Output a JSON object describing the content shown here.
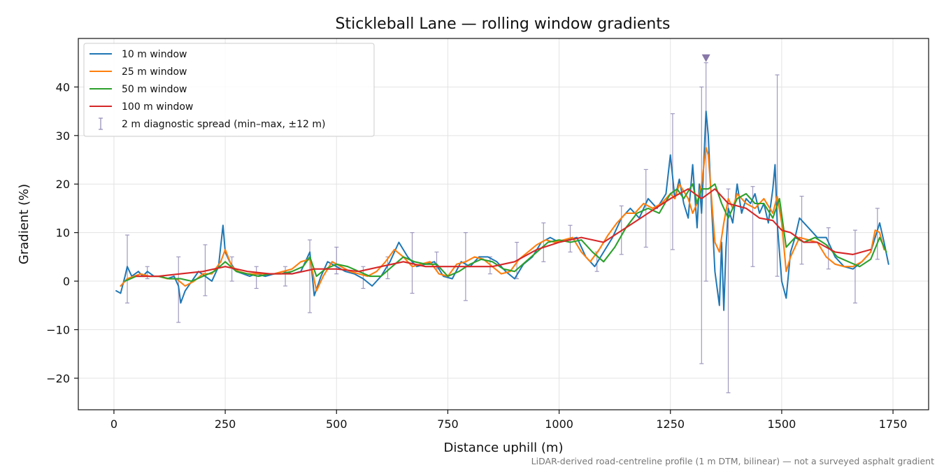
{
  "chart_data": {
    "type": "line",
    "title": "Stickleball Lane — rolling window gradients",
    "xlabel": "Distance uphill (m)",
    "ylabel": "Gradient (%)",
    "footnote": "LiDAR-derived road-centreline profile (1 m DTM, bilinear) — not a surveyed asphalt gradient",
    "xlim": [
      -80,
      1830
    ],
    "ylim": [
      -26.5,
      50
    ],
    "xticks": [
      0,
      250,
      500,
      750,
      1000,
      1250,
      1500,
      1750
    ],
    "xtick_labels": [
      "0",
      "250",
      "500",
      "750",
      "1000",
      "1250",
      "1500",
      "1750"
    ],
    "yticks": [
      -20,
      -10,
      0,
      10,
      20,
      30,
      40
    ],
    "ytick_labels": [
      "−20",
      "−10",
      "0",
      "10",
      "20",
      "30",
      "40"
    ],
    "grid": true,
    "legend_position": "upper left",
    "series": [
      {
        "name": "10 m window",
        "color": "#1f77b4",
        "x": [
          5,
          15,
          25,
          30,
          40,
          55,
          65,
          75,
          90,
          105,
          120,
          135,
          145,
          150,
          160,
          175,
          190,
          205,
          220,
          235,
          245,
          250,
          260,
          275,
          290,
          305,
          320,
          340,
          360,
          380,
          400,
          420,
          440,
          450,
          465,
          480,
          500,
          520,
          540,
          560,
          580,
          600,
          620,
          640,
          660,
          680,
          700,
          720,
          740,
          760,
          780,
          800,
          820,
          840,
          860,
          880,
          900,
          920,
          940,
          960,
          980,
          1000,
          1020,
          1040,
          1060,
          1080,
          1100,
          1120,
          1140,
          1160,
          1180,
          1200,
          1220,
          1240,
          1250,
          1260,
          1270,
          1280,
          1290,
          1300,
          1310,
          1315,
          1320,
          1330,
          1335,
          1340,
          1350,
          1360,
          1365,
          1370,
          1375,
          1380,
          1390,
          1400,
          1410,
          1420,
          1430,
          1440,
          1450,
          1460,
          1470,
          1480,
          1485,
          1490,
          1500,
          1510,
          1520,
          1530,
          1540,
          1560,
          1580,
          1600,
          1620,
          1640,
          1660,
          1680,
          1700,
          1710,
          1720,
          1730,
          1740
        ],
        "y": [
          -2,
          -2.5,
          1,
          3,
          1,
          2,
          1,
          2,
          1,
          1,
          0.5,
          1,
          -1,
          -4.5,
          -2,
          0,
          2,
          1,
          0,
          3,
          11.5,
          6,
          4,
          2,
          1.5,
          1,
          1.5,
          1,
          1.5,
          2,
          1.5,
          2,
          6,
          -3,
          1,
          4,
          3,
          2,
          1.5,
          0.5,
          -1,
          1,
          4,
          8,
          5,
          3,
          3.5,
          4,
          1,
          0.5,
          4,
          3,
          5,
          5,
          4,
          2,
          0.5,
          3.5,
          5,
          8,
          9,
          8,
          8.5,
          9,
          5,
          3,
          6,
          9,
          13,
          15,
          13,
          17,
          15,
          18,
          26,
          17,
          21,
          16,
          13,
          24,
          11,
          20,
          14,
          35,
          30,
          20,
          2,
          -5,
          8,
          -6,
          7,
          15,
          12,
          20,
          14,
          17,
          16,
          18,
          14,
          16,
          12,
          19,
          24,
          12,
          0,
          -3.5,
          6,
          9,
          13,
          11,
          9,
          9,
          5,
          3,
          2.5,
          4,
          6,
          9,
          12,
          8,
          3.5
        ]
      },
      {
        "name": "25 m window",
        "color": "#ff7f0e",
        "x": [
          15,
          30,
          45,
          60,
          80,
          100,
          120,
          140,
          160,
          180,
          200,
          220,
          240,
          250,
          265,
          280,
          300,
          320,
          340,
          360,
          380,
          400,
          420,
          440,
          455,
          470,
          490,
          510,
          530,
          550,
          570,
          590,
          610,
          630,
          650,
          670,
          690,
          710,
          730,
          750,
          770,
          790,
          810,
          830,
          850,
          870,
          890,
          910,
          930,
          950,
          970,
          990,
          1010,
          1030,
          1050,
          1070,
          1090,
          1110,
          1130,
          1150,
          1170,
          1190,
          1210,
          1230,
          1250,
          1260,
          1270,
          1290,
          1300,
          1310,
          1320,
          1330,
          1335,
          1340,
          1350,
          1360,
          1370,
          1380,
          1390,
          1400,
          1420,
          1440,
          1460,
          1480,
          1490,
          1500,
          1510,
          1520,
          1540,
          1560,
          1580,
          1600,
          1620,
          1640,
          1660,
          1680,
          1700,
          1710,
          1720,
          1730
        ],
        "y": [
          -1,
          0.5,
          1,
          1.5,
          1,
          1,
          0.5,
          0.5,
          -1,
          0,
          1.5,
          1.5,
          4,
          6.5,
          3,
          2,
          1.5,
          1.5,
          1.5,
          1.5,
          2,
          2.5,
          4,
          4.5,
          -2,
          1,
          4,
          3,
          2,
          1.5,
          1,
          2,
          4,
          6.5,
          5,
          3,
          3.5,
          4,
          1.5,
          1,
          3.5,
          4,
          5,
          4.5,
          3,
          1.5,
          2,
          4.5,
          6,
          7.5,
          8.5,
          8,
          8.5,
          9,
          6,
          4,
          6.5,
          9.5,
          12,
          14,
          14,
          16,
          15,
          16,
          18,
          17,
          20,
          17,
          14,
          16,
          20,
          27.5,
          26,
          20,
          8,
          6,
          12,
          17,
          15,
          18,
          16,
          15,
          17,
          14,
          17.5,
          12,
          2,
          5,
          9,
          8.5,
          8,
          5,
          3.5,
          3,
          3,
          4,
          6,
          10.5,
          10,
          6.5
        ]
      },
      {
        "name": "50 m window",
        "color": "#2ca02c",
        "x": [
          25,
          50,
          75,
          100,
          125,
          150,
          175,
          200,
          225,
          250,
          275,
          300,
          325,
          350,
          375,
          400,
          425,
          440,
          455,
          475,
          500,
          525,
          550,
          575,
          600,
          625,
          650,
          675,
          700,
          725,
          750,
          775,
          800,
          825,
          850,
          875,
          900,
          925,
          950,
          975,
          1000,
          1025,
          1050,
          1075,
          1100,
          1125,
          1150,
          1175,
          1200,
          1225,
          1250,
          1265,
          1280,
          1300,
          1310,
          1320,
          1335,
          1350,
          1365,
          1380,
          1400,
          1420,
          1440,
          1460,
          1480,
          1495,
          1510,
          1530,
          1550,
          1575,
          1600,
          1625,
          1650,
          1675,
          1700,
          1720,
          1735
        ],
        "y": [
          0,
          1,
          1,
          1,
          0.5,
          0.5,
          0,
          1,
          2,
          4,
          2,
          1.5,
          1,
          1.5,
          1.5,
          2,
          3,
          5,
          1,
          2.5,
          3.5,
          3,
          2,
          1,
          1,
          3,
          5,
          4,
          3.5,
          3.5,
          1,
          2,
          3.5,
          4.5,
          4,
          2.5,
          2,
          4,
          6,
          8,
          8.5,
          8,
          8.5,
          6,
          4,
          7,
          11,
          14,
          15,
          14,
          18,
          19,
          17,
          20,
          16,
          19,
          19,
          20,
          16,
          13,
          17,
          18,
          16,
          16,
          13,
          17,
          7,
          9,
          8,
          9,
          7.5,
          5,
          4,
          3,
          4.5,
          9,
          6
        ]
      },
      {
        "name": "100 m window",
        "color": "#d62728",
        "x": [
          50,
          100,
          150,
          200,
          250,
          300,
          350,
          400,
          450,
          500,
          550,
          600,
          650,
          700,
          750,
          800,
          850,
          900,
          950,
          1000,
          1050,
          1100,
          1150,
          1200,
          1250,
          1290,
          1320,
          1350,
          1380,
          1420,
          1450,
          1480,
          1500,
          1520,
          1550,
          1580,
          1620,
          1660,
          1700
        ],
        "y": [
          1,
          1,
          1.5,
          2,
          3,
          2,
          1.5,
          1.5,
          2.5,
          2.5,
          2,
          3,
          4,
          3,
          3,
          3,
          3,
          4,
          6.5,
          8,
          9,
          8,
          11,
          14,
          17,
          19,
          17,
          19,
          16,
          15,
          13,
          12.5,
          10.5,
          10,
          8,
          8,
          6,
          5.5,
          6.5
        ]
      }
    ],
    "error_bars": {
      "name": "2 m diagnostic spread (min–max, ±12 m)",
      "color": "#9088b5",
      "x": [
        30,
        75,
        145,
        205,
        265,
        320,
        385,
        440,
        500,
        560,
        615,
        670,
        725,
        790,
        845,
        905,
        965,
        1025,
        1085,
        1140,
        1195,
        1255,
        1320,
        1330,
        1380,
        1435,
        1490,
        1545,
        1605,
        1665,
        1715
      ],
      "low": [
        -4.5,
        0.5,
        -8.5,
        -3,
        0,
        -1.5,
        -1,
        -6.5,
        1.5,
        -1.5,
        0.5,
        -2.5,
        2.5,
        -4,
        1.5,
        0.5,
        4,
        6,
        2,
        5.5,
        7,
        6.5,
        -17,
        0,
        -23,
        3,
        1,
        3.5,
        2.5,
        -4.5,
        4.5
      ],
      "high": [
        9.5,
        3,
        5,
        7.5,
        5,
        3,
        3,
        8.5,
        7,
        3,
        5,
        10,
        6,
        10,
        5,
        8,
        12,
        11.5,
        6,
        15.5,
        23,
        34.5,
        40,
        45,
        19,
        19.5,
        42.5,
        17.5,
        11,
        10.5,
        15
      ]
    },
    "marker": {
      "type": "triangle-down",
      "x": 1330,
      "y": 46,
      "color": "#8878a8"
    }
  }
}
